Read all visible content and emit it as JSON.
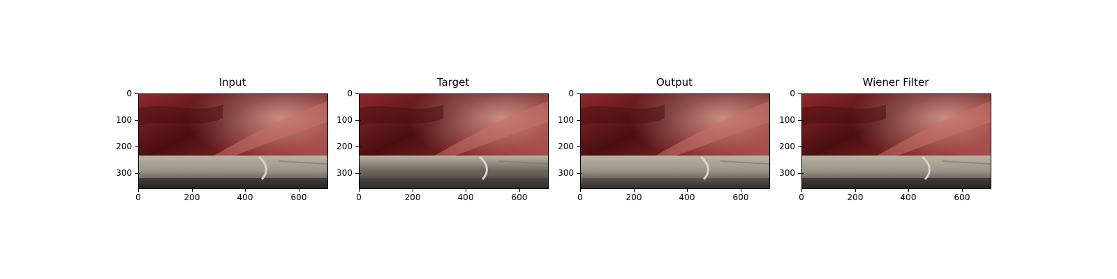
{
  "panels": [
    {
      "title": "Input",
      "variant": "input"
    },
    {
      "title": "Target",
      "variant": "target"
    },
    {
      "title": "Output",
      "variant": "output"
    },
    {
      "title": "Wiener Filter",
      "variant": "wiener"
    }
  ],
  "image_axes": {
    "y_ticks": [
      "0",
      "100",
      "200",
      "300"
    ],
    "x_ticks": [
      "0",
      "200",
      "400",
      "600"
    ],
    "x_range": [
      0,
      704
    ],
    "y_range": [
      352,
      0
    ]
  },
  "colors": {
    "tissue_dark": "#4a0e10",
    "tissue_mid": "#8e2a2c",
    "tissue_light": "#c8716a",
    "instrument": "#9c958a",
    "instrument_highlight": "#d8d4cc"
  }
}
